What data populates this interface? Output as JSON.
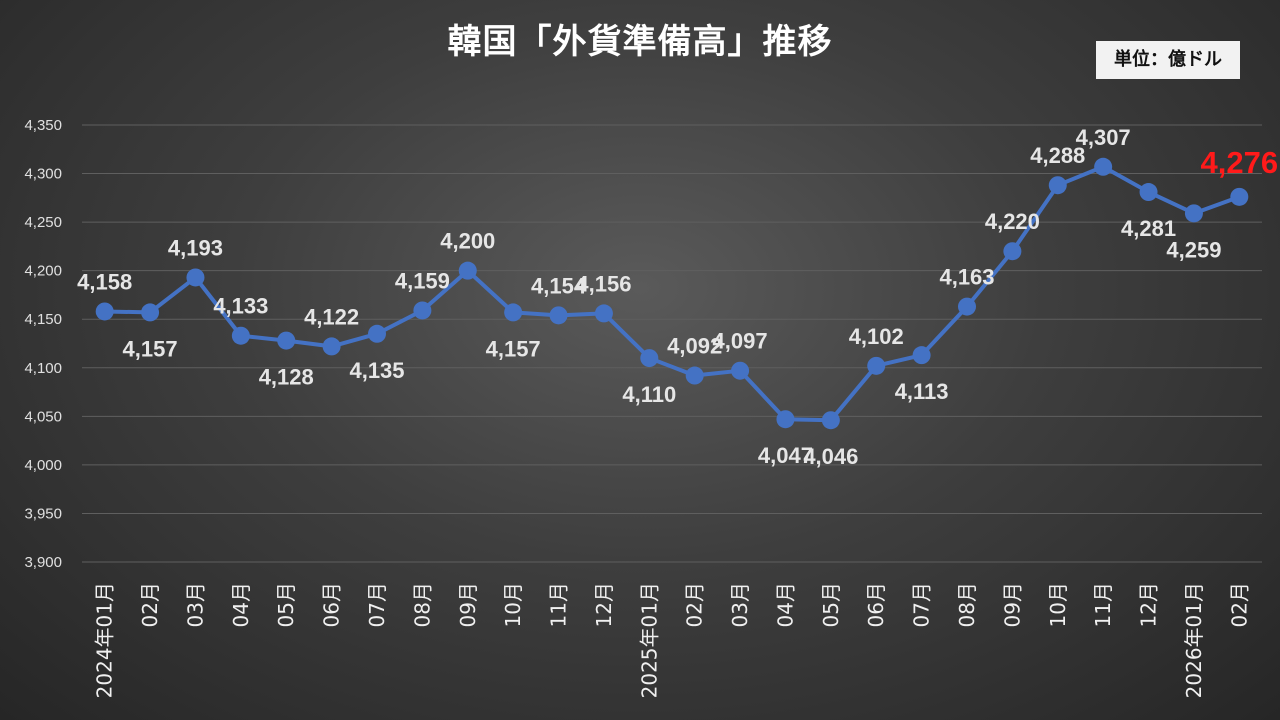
{
  "title": "韓国「外貨準備高」推移",
  "unit_label": "単位：億ドル",
  "colors": {
    "line": "#4472c4",
    "last_label": "#ff1a1a",
    "grid": "#5f5f5f",
    "text": "#e6e6e6"
  },
  "chart_data": {
    "type": "line",
    "title": "韓国「外貨準備高」推移",
    "xlabel": "",
    "ylabel": "",
    "ylim": [
      3900,
      4350
    ],
    "yticks": [
      3900,
      3950,
      4000,
      4050,
      4100,
      4150,
      4200,
      4250,
      4300,
      4350
    ],
    "ytick_labels": [
      "3,900",
      "3,950",
      "4,000",
      "4,050",
      "4,100",
      "4,150",
      "4,200",
      "4,250",
      "4,300",
      "4,350"
    ],
    "grid": true,
    "categories": [
      "2024年01月",
      "02月",
      "03月",
      "04月",
      "05月",
      "06月",
      "07月",
      "08月",
      "09月",
      "10月",
      "11月",
      "12月",
      "2025年01月",
      "02月",
      "03月",
      "04月",
      "05月",
      "06月",
      "07月",
      "08月",
      "09月",
      "10月",
      "11月",
      "12月",
      "2026年01月",
      "02月"
    ],
    "series": [
      {
        "values": [
          4158,
          4157,
          4193,
          4133,
          4128,
          4122,
          4135,
          4159,
          4200,
          4157,
          4154,
          4156,
          4110,
          4092,
          4097,
          4047,
          4046,
          4102,
          4113,
          4163,
          4220,
          4288,
          4307,
          4281,
          4259,
          4276
        ],
        "labels": [
          "4,158",
          "4,157",
          "4,193",
          "4,133",
          "4,128",
          "4,122",
          "4,135",
          "4,159",
          "4,200",
          "4,157",
          "4,154",
          "4,156",
          "4,110",
          "4,092",
          "4,097",
          "4,047",
          "4,046",
          "4,102",
          "4,113",
          "4,163",
          "4,220",
          "4,288",
          "4,307",
          "4,281",
          "4,259",
          "4,276"
        ]
      }
    ]
  }
}
